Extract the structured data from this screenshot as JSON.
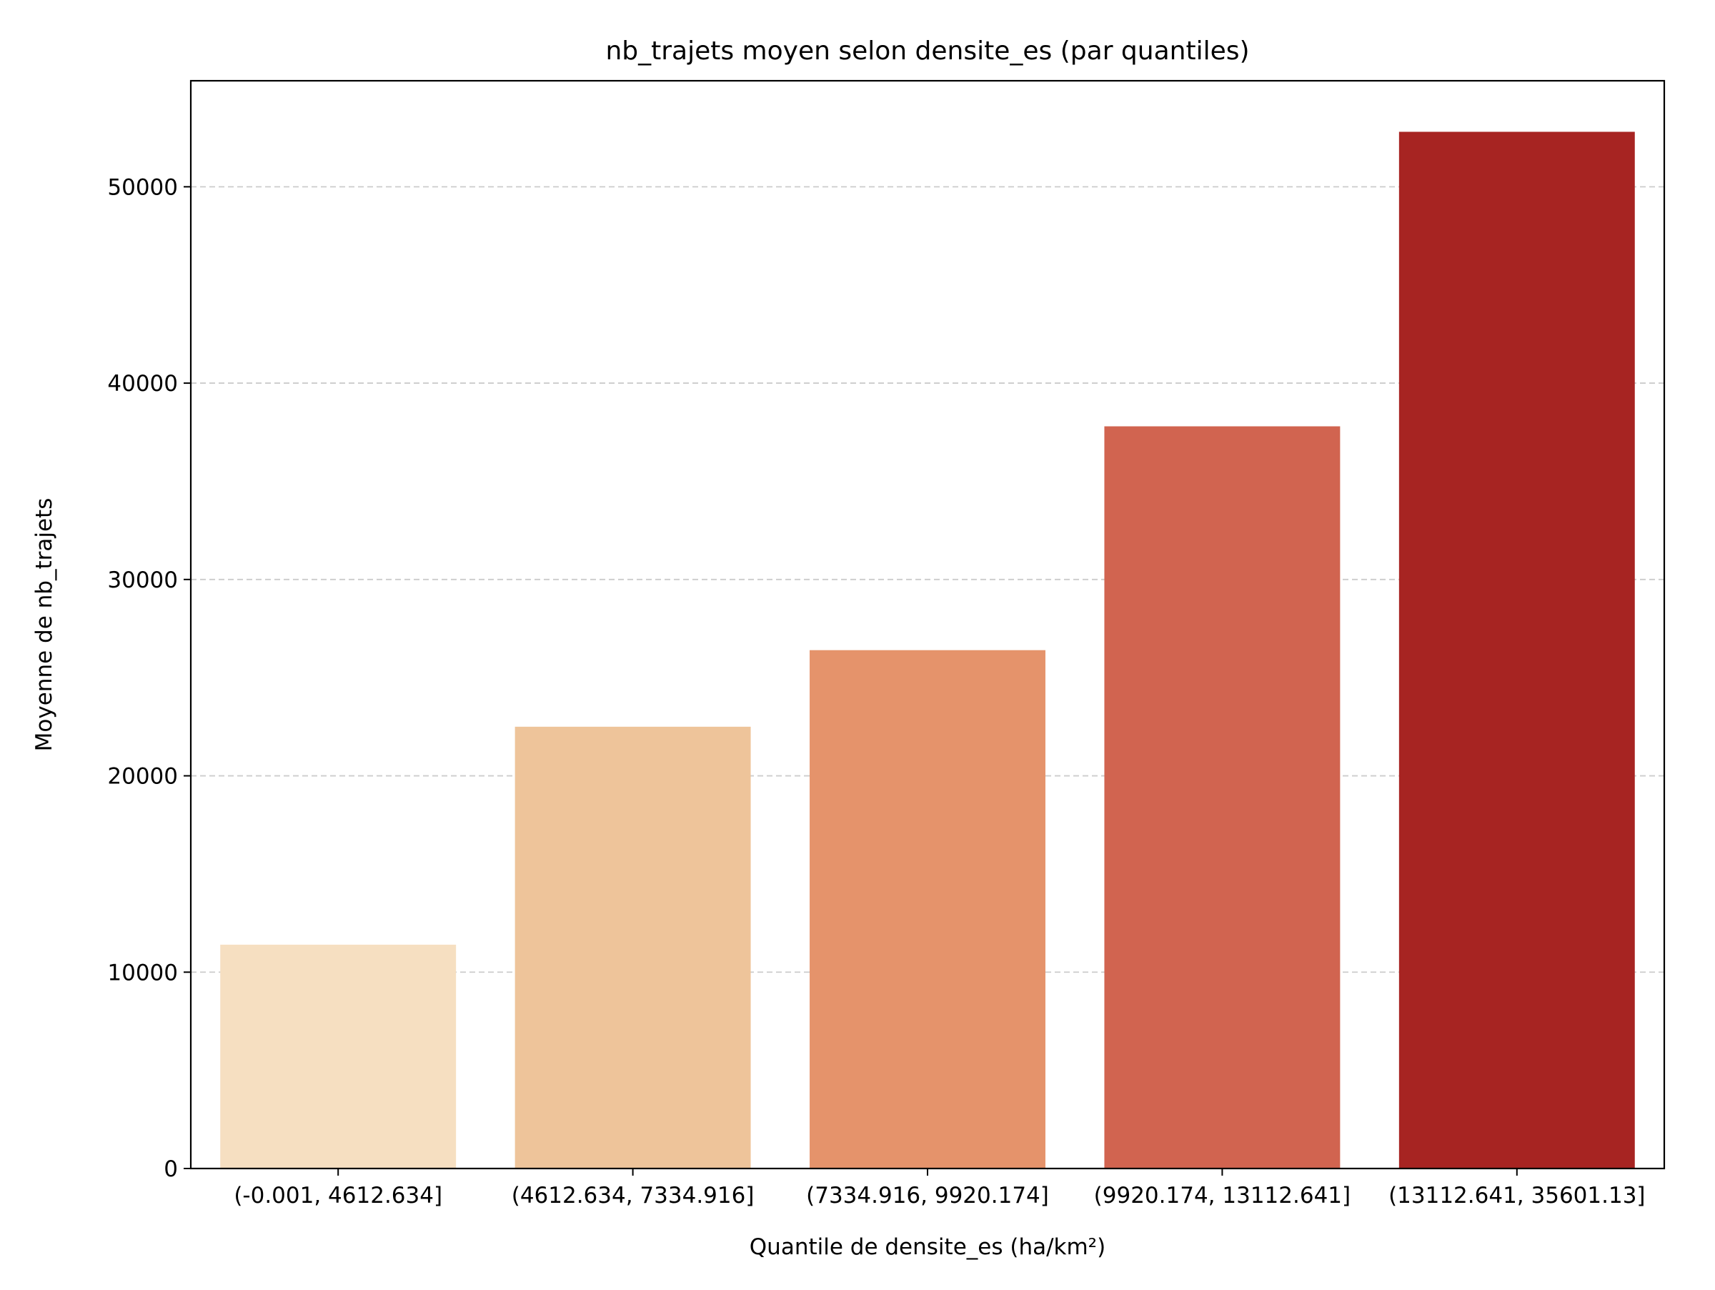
{
  "chart_data": {
    "type": "bar",
    "title": "nb_trajets moyen selon densite_es (par quantiles)",
    "xlabel": "Quantile de densite_es (ha/km²)",
    "ylabel": "Moyenne de nb_trajets",
    "categories": [
      "(-0.001, 4612.634]",
      "(4612.634, 7334.916]",
      "(7334.916, 9920.174]",
      "(9920.174, 13112.641]",
      "(13112.641, 35601.13]"
    ],
    "values": [
      11400,
      22500,
      26400,
      37800,
      52800
    ],
    "colors": [
      "#f6dfc1",
      "#eec49a",
      "#e5936b",
      "#d16450",
      "#a72422"
    ],
    "ylim": [
      0,
      55400
    ],
    "yticks": [
      0,
      10000,
      20000,
      30000,
      40000,
      50000
    ],
    "grid": "y-dashed",
    "legend": "none"
  }
}
